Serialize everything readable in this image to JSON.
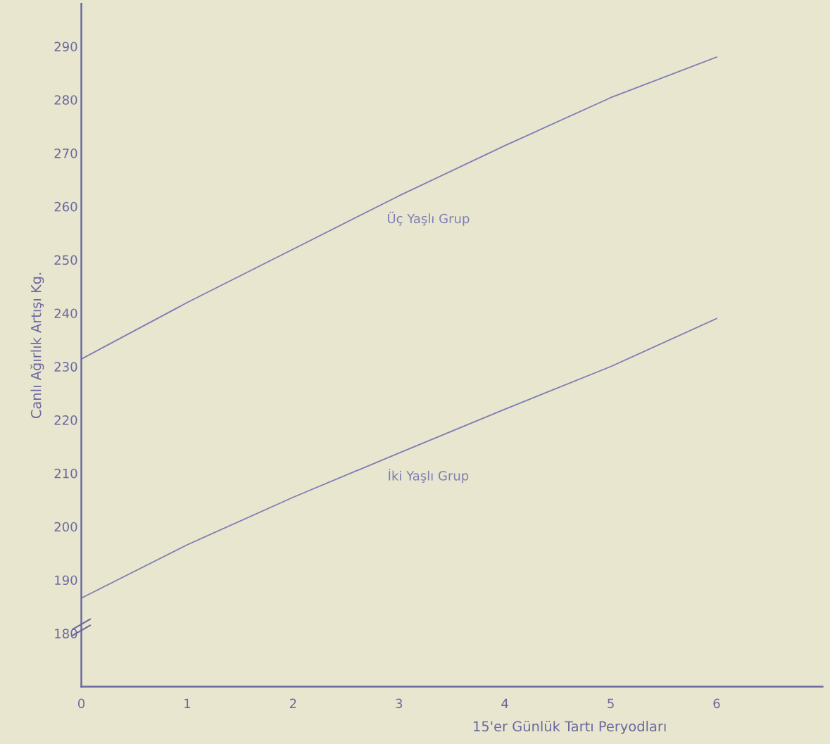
{
  "chart_data": {
    "type": "line",
    "xlabel": "15'er Günlük Tartı Peryodları",
    "ylabel": "Canlı Ağırlık Artışı Kg.",
    "x": [
      0,
      1,
      2,
      3,
      4,
      5,
      6
    ],
    "series": [
      {
        "name": "Üç Yaşlı Grup",
        "color": "#7f7db5",
        "values": [
          231.4,
          242,
          252,
          262,
          271.4,
          280.4,
          288
        ]
      },
      {
        "name": "İki Yaşlı Grup",
        "color": "#7f7db5",
        "values": [
          186.6,
          196.6,
          205.5,
          213.8,
          222,
          230,
          239
        ]
      }
    ],
    "xlim": [
      0,
      7
    ],
    "ylim": [
      170,
      298
    ],
    "xticks": [
      0,
      1,
      2,
      3,
      4,
      5,
      6
    ],
    "yticks": [
      180,
      190,
      200,
      210,
      220,
      230,
      240,
      250,
      260,
      270,
      280,
      290
    ],
    "grid": false,
    "legend": false,
    "marker": "none",
    "line_style": "solid"
  }
}
